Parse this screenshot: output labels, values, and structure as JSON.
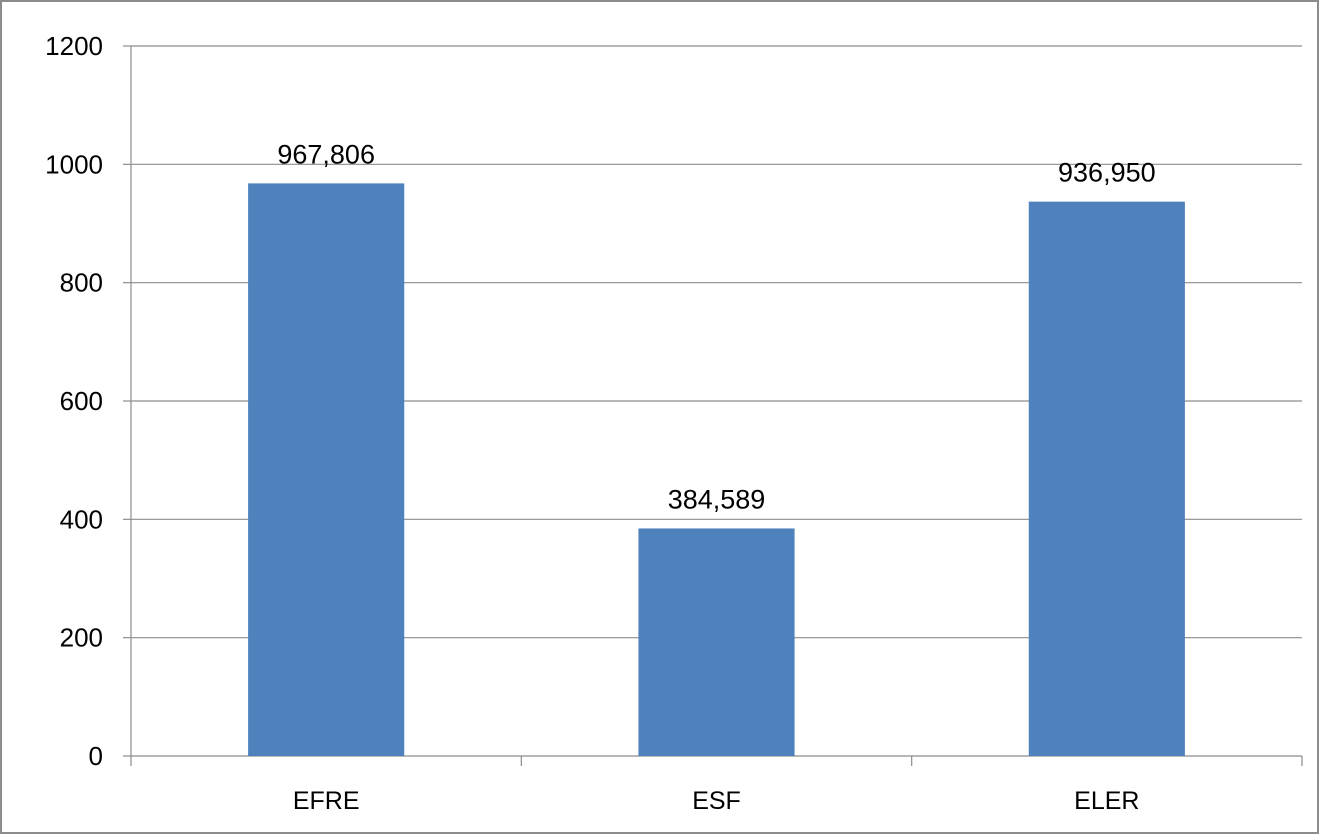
{
  "chart_data": {
    "type": "bar",
    "title": "",
    "xlabel": "",
    "ylabel": "",
    "categories": [
      "EFRE",
      "ESF",
      "ELER"
    ],
    "values": [
      967.806,
      384.589,
      936.95
    ],
    "data_labels": [
      "967,806",
      "384,589",
      "936,950"
    ],
    "ylim": [
      0,
      1200
    ],
    "yticks": [
      0,
      200,
      400,
      600,
      800,
      1000,
      1200
    ],
    "ytick_labels": [
      "0",
      "200",
      "400",
      "600",
      "800",
      "1000",
      "1200"
    ],
    "grid": true,
    "legend": "none",
    "colors": {
      "bar": "#4f81bd",
      "grid": "#8c8c8c",
      "axis": "#8c8c8c",
      "frame": "#8c8c8c",
      "text": "#000000"
    }
  }
}
